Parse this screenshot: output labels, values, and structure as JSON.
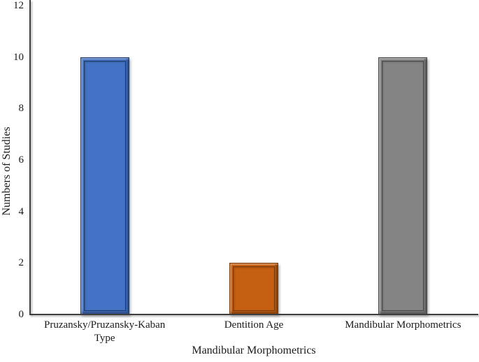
{
  "chart_data": {
    "type": "bar",
    "title": "",
    "xlabel": "Mandibular Morphometrics",
    "ylabel": "Numbers of Studies",
    "categories": [
      "Pruzansky/Pruzansky-Kaban Type",
      "Dentition Age",
      "Mandibular Morphometrics"
    ],
    "values": [
      10,
      2,
      10
    ],
    "bar_colors": [
      "#4472c4",
      "#c55f11",
      "#848484"
    ],
    "bar_edge_colors": [
      "#1b3a66",
      "#773b08",
      "#454545"
    ],
    "ylim": [
      0,
      12
    ],
    "ytick_step": 2,
    "ytick_labels": [
      "0",
      "2",
      "4",
      "6",
      "8",
      "10",
      "12"
    ],
    "grid": false,
    "legend_position": "none",
    "axis_color": "#3d3d3d",
    "background_color": "#ffffff"
  }
}
